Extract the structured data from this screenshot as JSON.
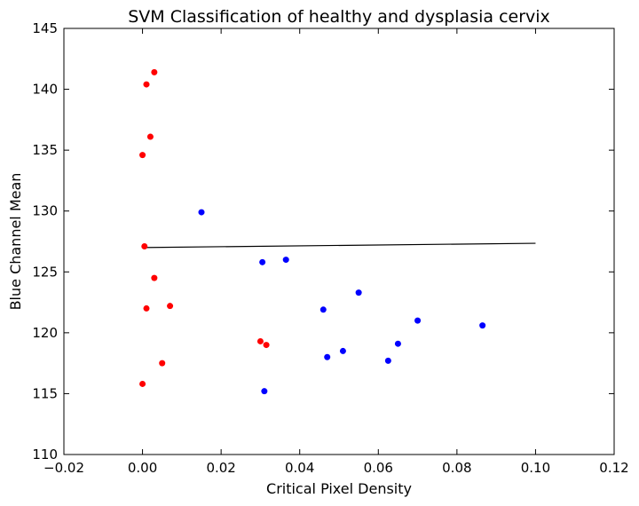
{
  "chart_data": {
    "type": "scatter",
    "title": "SVM Classification of healthy and dysplasia cervix",
    "xlabel": "Critical Pixel Density",
    "ylabel": "Blue Channel Mean",
    "xlim": [
      -0.02,
      0.12
    ],
    "ylim": [
      110,
      145
    ],
    "xticks": [
      "−0.02",
      "0.00",
      "0.02",
      "0.04",
      "0.06",
      "0.08",
      "0.10",
      "0.12"
    ],
    "yticks": [
      "110",
      "115",
      "120",
      "125",
      "130",
      "135",
      "140",
      "145"
    ],
    "grid": false,
    "legend": "none",
    "series": [
      {
        "color": "#ff0000",
        "points": [
          {
            "x": 0.003,
            "y": 141.4
          },
          {
            "x": 0.001,
            "y": 140.4
          },
          {
            "x": 0.002,
            "y": 136.1
          },
          {
            "x": 0.0,
            "y": 134.6
          },
          {
            "x": 0.0005,
            "y": 127.1
          },
          {
            "x": 0.003,
            "y": 124.5
          },
          {
            "x": 0.001,
            "y": 122.0
          },
          {
            "x": 0.007,
            "y": 122.2
          },
          {
            "x": 0.03,
            "y": 119.3
          },
          {
            "x": 0.0315,
            "y": 119.0
          },
          {
            "x": 0.005,
            "y": 117.5
          },
          {
            "x": 0.0,
            "y": 115.8
          }
        ]
      },
      {
        "color": "#0000ff",
        "points": [
          {
            "x": 0.015,
            "y": 129.9
          },
          {
            "x": 0.0305,
            "y": 125.8
          },
          {
            "x": 0.0365,
            "y": 126.0
          },
          {
            "x": 0.055,
            "y": 123.3
          },
          {
            "x": 0.046,
            "y": 121.9
          },
          {
            "x": 0.07,
            "y": 121.0
          },
          {
            "x": 0.0865,
            "y": 120.6
          },
          {
            "x": 0.065,
            "y": 119.1
          },
          {
            "x": 0.051,
            "y": 118.5
          },
          {
            "x": 0.047,
            "y": 118.0
          },
          {
            "x": 0.0625,
            "y": 117.7
          },
          {
            "x": 0.031,
            "y": 115.2
          }
        ]
      }
    ],
    "decision_boundary": {
      "color": "#000000",
      "points": [
        {
          "x": 0.0,
          "y": 127.0
        },
        {
          "x": 0.1,
          "y": 127.35
        }
      ]
    }
  }
}
